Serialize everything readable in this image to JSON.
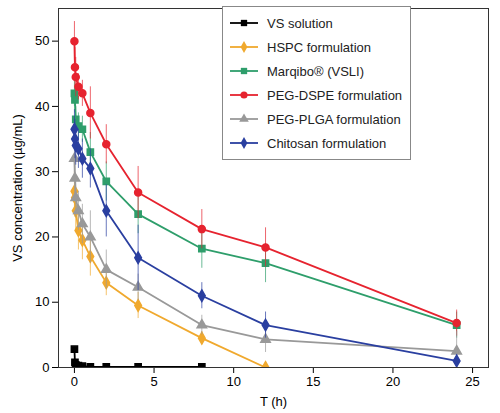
{
  "chart_data": {
    "type": "line",
    "x_label": "T (h)",
    "y_label": "VS concentration (µg/mL)",
    "xlim": [
      -1,
      26
    ],
    "xticks": [
      0,
      5,
      10,
      15,
      20,
      25
    ],
    "ylim": [
      0,
      55
    ],
    "yticks": [
      0,
      10,
      20,
      30,
      40,
      50
    ],
    "legend": "top-right",
    "x": [
      0,
      0.033,
      0.083,
      0.25,
      0.5,
      1,
      2,
      4,
      8,
      12,
      24
    ],
    "series": [
      {
        "name": "VS solution",
        "color": "#000000",
        "marker": "square",
        "values": [
          2.8,
          0.8,
          0.4,
          0.3,
          0.2,
          0.1,
          0.1,
          0.1,
          0.1,
          null,
          null
        ],
        "errors": [
          0.3,
          0.2,
          0.1,
          0.1,
          0.1,
          0.1,
          0.1,
          0.1,
          0.1,
          null,
          null
        ]
      },
      {
        "name": "HSPC formulation",
        "color": "#f0a92e",
        "marker": "diamond",
        "values": [
          27,
          26,
          24,
          21,
          19.5,
          17,
          13,
          9.5,
          4.5,
          0,
          null
        ],
        "errors": [
          3,
          3,
          3,
          3,
          3,
          3,
          2,
          2,
          1,
          0,
          null
        ]
      },
      {
        "name": "Marqibo® (VSLI)",
        "color": "#2e9e6b",
        "marker": "square",
        "values": [
          42,
          41,
          38,
          37,
          36.5,
          33,
          28.5,
          23.5,
          18.2,
          16,
          6.5
        ],
        "errors": [
          2,
          2,
          2,
          2,
          2,
          3,
          3,
          3,
          3,
          3,
          2
        ]
      },
      {
        "name": "PEG-DSPE formulation",
        "color": "#e6232f",
        "marker": "circle",
        "values": [
          50,
          46,
          44.5,
          43,
          42,
          39,
          34.2,
          26.8,
          21.2,
          18.4,
          6.8
        ],
        "errors": [
          3,
          3,
          3,
          2,
          2,
          4,
          3,
          4,
          3,
          3,
          2
        ]
      },
      {
        "name": "PEG-PLGA formulation",
        "color": "#999999",
        "marker": "triangle",
        "values": [
          32,
          29,
          26,
          24,
          22,
          20,
          15,
          12.3,
          6.5,
          4.3,
          2.5
        ],
        "errors": [
          3,
          3,
          3,
          3,
          3,
          4,
          3,
          2,
          1.5,
          2,
          3
        ]
      },
      {
        "name": "Chitosan formulation",
        "color": "#2a3fa0",
        "marker": "diamond",
        "values": [
          36.5,
          35,
          34,
          33.5,
          32,
          30.5,
          24,
          16.8,
          11,
          6.5,
          1
        ],
        "errors": [
          3,
          3,
          3,
          3,
          3,
          3,
          4,
          5,
          2,
          2,
          1
        ]
      }
    ]
  }
}
